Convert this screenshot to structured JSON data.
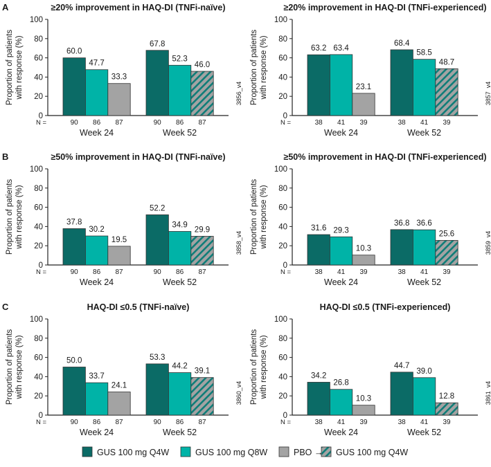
{
  "colors": {
    "q4w": "#0b6b66",
    "q8w": "#00b3a7",
    "pbo": "#a3a3a3",
    "hatch": "#0f7d78",
    "axis": "#222222"
  },
  "legend": [
    {
      "label": "GUS 100 mg Q4W",
      "key": "q4w"
    },
    {
      "label": "GUS 100 mg Q8W",
      "key": "q8w"
    },
    {
      "label": "PBO →",
      "key": "pbo"
    },
    {
      "label": "GUS 100 mg Q4W",
      "key": "hatch"
    }
  ],
  "chart_data": [
    {
      "type": "bar",
      "section": "A",
      "title": "≥20% improvement in HAQ-DI (TNFi-naïve)",
      "ylabel": [
        "Proportion of patients",
        "with response (%)"
      ],
      "ylim": [
        0,
        100
      ],
      "yticks": [
        "0",
        "20",
        "40",
        "60",
        "80",
        "100"
      ],
      "categories": [
        "Week 24",
        "Week 52"
      ],
      "n_prefix": "N =",
      "values": [
        [
          60.0,
          47.7,
          33.3
        ],
        [
          67.8,
          52.3,
          46.0
        ]
      ],
      "labels": [
        [
          "60.0",
          "47.7",
          "33.3"
        ],
        [
          "67.8",
          "52.3",
          "46.0"
        ]
      ],
      "n": [
        [
          "90",
          "86",
          "87"
        ],
        [
          "90",
          "86",
          "87"
        ]
      ],
      "code": "3856_v4"
    },
    {
      "type": "bar",
      "section": "",
      "title": "≥20% improvement in HAQ-DI (TNFi-experienced)",
      "ylabel": [
        "Proportion of patients",
        "with response (%)"
      ],
      "ylim": [
        0,
        100
      ],
      "yticks": [
        "0",
        "20",
        "40",
        "60",
        "80",
        "100"
      ],
      "categories": [
        "Week 24",
        "Week 52"
      ],
      "n_prefix": "N =",
      "values": [
        [
          63.2,
          63.4,
          23.1
        ],
        [
          68.4,
          58.5,
          48.7
        ]
      ],
      "labels": [
        [
          "63.2",
          "63.4",
          "23.1"
        ],
        [
          "68.4",
          "58.5",
          "48.7"
        ]
      ],
      "n": [
        [
          "38",
          "41",
          "39"
        ],
        [
          "38",
          "41",
          "39"
        ]
      ],
      "code": "3857_v4"
    },
    {
      "type": "bar",
      "section": "B",
      "title": "≥50% improvement in HAQ-DI (TNFi-naïve)",
      "ylabel": [
        "Proportion of patients",
        "with response (%)"
      ],
      "ylim": [
        0,
        100
      ],
      "yticks": [
        "0",
        "20",
        "40",
        "60",
        "80",
        "100"
      ],
      "categories": [
        "Week 24",
        "Week 52"
      ],
      "n_prefix": "N =",
      "values": [
        [
          37.8,
          30.2,
          19.5
        ],
        [
          52.2,
          34.9,
          29.9
        ]
      ],
      "labels": [
        [
          "37.8",
          "30.2",
          "19.5"
        ],
        [
          "52.2",
          "34.9",
          "29.9"
        ]
      ],
      "n": [
        [
          "90",
          "86",
          "87"
        ],
        [
          "90",
          "86",
          "87"
        ]
      ],
      "code": "3858_v4"
    },
    {
      "type": "bar",
      "section": "",
      "title": "≥50% improvement in HAQ-DI (TNFi-experienced)",
      "ylabel": [
        "Proportion of patients",
        "with response (%)"
      ],
      "ylim": [
        0,
        100
      ],
      "yticks": [
        "0",
        "20",
        "40",
        "60",
        "80",
        "100"
      ],
      "categories": [
        "Week 24",
        "Week 52"
      ],
      "n_prefix": "N =",
      "values": [
        [
          31.6,
          29.3,
          10.3
        ],
        [
          36.8,
          36.6,
          25.6
        ]
      ],
      "labels": [
        [
          "31.6",
          "29.3",
          "10.3"
        ],
        [
          "36.8",
          "36.6",
          "25.6"
        ]
      ],
      "n": [
        [
          "38",
          "41",
          "39"
        ],
        [
          "38",
          "41",
          "39"
        ]
      ],
      "code": "3859_v4"
    },
    {
      "type": "bar",
      "section": "C",
      "title": "HAQ-DI ≤0.5 (TNFi-naïve)",
      "ylabel": [
        "Proportion of patients",
        "with response (%)"
      ],
      "ylim": [
        0,
        100
      ],
      "yticks": [
        "0",
        "20",
        "40",
        "60",
        "80",
        "100"
      ],
      "categories": [
        "Week 24",
        "Week 52"
      ],
      "n_prefix": "N =",
      "values": [
        [
          50.0,
          33.7,
          24.1
        ],
        [
          53.3,
          44.2,
          39.1
        ]
      ],
      "labels": [
        [
          "50.0",
          "33.7",
          "24.1"
        ],
        [
          "53.3",
          "44.2",
          "39.1"
        ]
      ],
      "n": [
        [
          "90",
          "86",
          "87"
        ],
        [
          "90",
          "86",
          "87"
        ]
      ],
      "code": "3860_v4"
    },
    {
      "type": "bar",
      "section": "",
      "title": "HAQ-DI ≤0.5 (TNFi-experienced)",
      "ylabel": [
        "Proportion of patients",
        "with response (%)"
      ],
      "ylim": [
        0,
        100
      ],
      "yticks": [
        "0",
        "20",
        "40",
        "60",
        "80",
        "100"
      ],
      "categories": [
        "Week 24",
        "Week 52"
      ],
      "n_prefix": "N =",
      "values": [
        [
          34.2,
          26.8,
          10.3
        ],
        [
          44.7,
          39.0,
          12.8
        ]
      ],
      "labels": [
        [
          "34.2",
          "26.8",
          "10.3"
        ],
        [
          "44.7",
          "39.0",
          "12.8"
        ]
      ],
      "n": [
        [
          "38",
          "41",
          "39"
        ],
        [
          "38",
          "41",
          "39"
        ]
      ],
      "code": "3861_v4"
    }
  ]
}
